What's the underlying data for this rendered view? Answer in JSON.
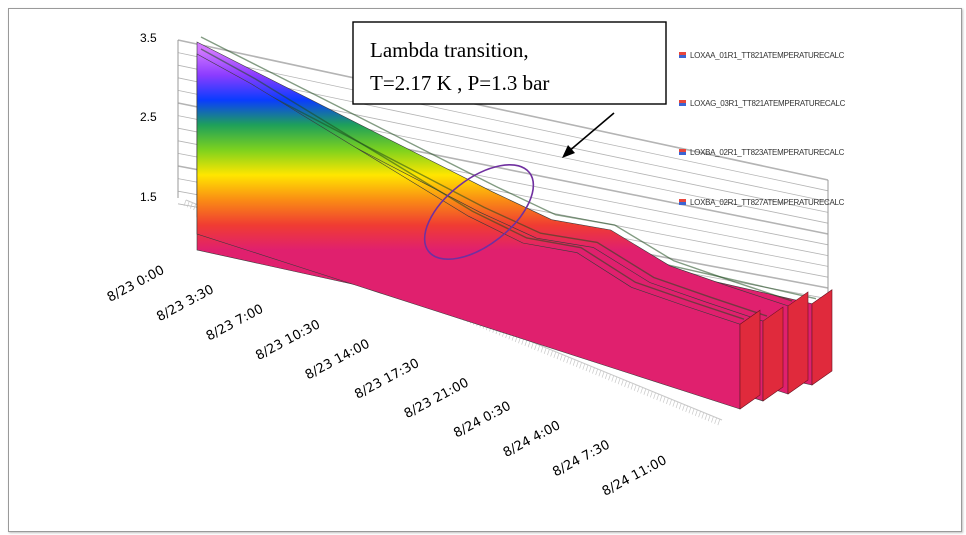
{
  "chart_data": {
    "type": "area",
    "view": "3d",
    "y_axis": {
      "ticks": [
        "1.5",
        "2.5",
        "3.5"
      ],
      "range": [
        1.5,
        3.5
      ]
    },
    "x_axis": {
      "ticks": [
        "8/23  0:00",
        "8/23  3:30",
        "8/23  7:00",
        "8/23  10:30",
        "8/23  14:00",
        "8/23  17:30",
        "8/23  21:00",
        "8/24  0:30",
        "8/24  4:00",
        "8/24  7:30",
        "8/24  11:00"
      ]
    },
    "legend_position": "right",
    "series": [
      {
        "name": "LOXAA_01R1_TT821ATEMPERATURECALC",
        "color": "#e8463c",
        "sample_times": [
          "8/23 0:00",
          "8/23 3:30",
          "8/23 7:00",
          "8/23 10:30",
          "8/23 14:00",
          "8/23 17:30",
          "8/23 21:00",
          "8/24 0:30",
          "8/24 4:00",
          "8/24 7:30",
          "8/24 11:00"
        ],
        "values": [
          3.3,
          3.1,
          2.85,
          2.6,
          2.35,
          2.1,
          1.95,
          1.85,
          1.8,
          1.78,
          1.77
        ]
      },
      {
        "name": "LOXAG_03R1_TT821ATEMPERATURECALC",
        "color": "#e8463c",
        "sample_times": [
          "8/23 0:00",
          "8/23 3:30",
          "8/23 7:00",
          "8/23 10:30",
          "8/23 14:00",
          "8/23 17:30",
          "8/23 21:00",
          "8/24 0:30",
          "8/24 4:00",
          "8/24 7:30",
          "8/24 11:00"
        ],
        "values": [
          3.4,
          3.15,
          2.9,
          2.65,
          2.4,
          2.15,
          1.98,
          1.87,
          1.81,
          1.78,
          1.77
        ]
      },
      {
        "name": "LOXBA_02R1_TT823ATEMPERATURECALC",
        "color": "#e8463c",
        "sample_times": [
          "8/23 0:00",
          "8/23 3:30",
          "8/23 7:00",
          "8/23 10:30",
          "8/23 14:00",
          "8/23 17:30",
          "8/23 21:00",
          "8/24 0:30",
          "8/24 4:00",
          "8/24 7:30",
          "8/24 11:00"
        ],
        "values": [
          3.45,
          3.2,
          2.95,
          2.7,
          2.45,
          2.2,
          2.0,
          1.88,
          1.82,
          1.79,
          1.78
        ]
      },
      {
        "name": "LOXBA_02R1_TT827ATEMPERATURECALC",
        "color": "#e8463c",
        "sample_times": [
          "8/23 0:00",
          "8/23 3:30",
          "8/23 7:00",
          "8/23 10:30",
          "8/23 14:00",
          "8/23 17:30",
          "8/23 21:00",
          "8/24 0:30",
          "8/24 4:00",
          "8/24 7:30",
          "8/24 11:00"
        ],
        "values": [
          2.05,
          2.0,
          1.95,
          1.9,
          1.87,
          1.84,
          1.82,
          1.81,
          1.8,
          1.79,
          1.78
        ]
      }
    ],
    "annotation": {
      "lines": [
        "Lambda transition,",
        "T=2.17 K , P=1.3 bar"
      ],
      "marker": "ellipse",
      "marker_color": "#7030a0"
    },
    "colors": {
      "ramp": [
        "#e0206e",
        "#f03c32",
        "#fa8c14",
        "#ffe600",
        "#7dd21e",
        "#1ea05a",
        "#0a3cff",
        "#8c3cff",
        "#d278ff"
      ],
      "gridline": "#b4b4b4",
      "floor_tick": "#c8c8c8",
      "legend_marker_top": "#e8463c",
      "legend_marker_bottom": "#3c64d2"
    }
  }
}
